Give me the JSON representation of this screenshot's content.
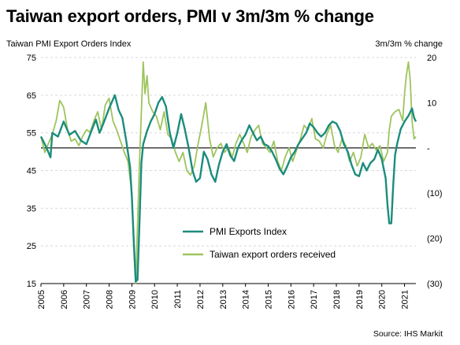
{
  "title": "Taiwan export orders, PMI v 3m/3m % change",
  "source": "Source: IHS Markit",
  "colors": {
    "pmi": "#1b8c7c",
    "orders": "#9ec45e",
    "grid": "#d9d9d9",
    "zero": "#000000"
  },
  "chart_data": {
    "type": "line",
    "title": "Taiwan export orders, PMI v 3m/3m % change",
    "left_axis": {
      "label": "Taiwan PMI Export Orders Index",
      "range": [
        15,
        75
      ],
      "ticks": [
        "75",
        "65",
        "55",
        "45",
        "35",
        "25",
        "15"
      ]
    },
    "right_axis": {
      "label": "3m/3m % change",
      "range": [
        -30,
        20
      ],
      "ticks": [
        "20",
        "10",
        "-",
        "(10)",
        "(20)",
        "(30)"
      ]
    },
    "x_ticks": [
      "2005",
      "2006",
      "2007",
      "2008",
      "2009",
      "2010",
      "2011",
      "2012",
      "2013",
      "2014",
      "2015",
      "2016",
      "2017",
      "2018",
      "2019",
      "2020",
      "2021"
    ],
    "x_range": [
      2005.0,
      2021.5
    ],
    "grid": true,
    "legend_position": "bottom-center",
    "series": [
      {
        "name": "PMI Exports Index",
        "axis": "left",
        "color": "#1b8c7c",
        "points": [
          [
            2005.0,
            54.0
          ],
          [
            2005.25,
            51.0
          ],
          [
            2005.42,
            48.5
          ],
          [
            2005.5,
            55.0
          ],
          [
            2005.75,
            54.0
          ],
          [
            2006.0,
            58.0
          ],
          [
            2006.25,
            54.5
          ],
          [
            2006.5,
            55.5
          ],
          [
            2006.75,
            53.0
          ],
          [
            2007.0,
            52.0
          ],
          [
            2007.25,
            56.0
          ],
          [
            2007.42,
            58.5
          ],
          [
            2007.58,
            55.0
          ],
          [
            2007.75,
            57.5
          ],
          [
            2008.0,
            61.5
          ],
          [
            2008.25,
            65.0
          ],
          [
            2008.42,
            61.0
          ],
          [
            2008.58,
            59.0
          ],
          [
            2008.75,
            53.0
          ],
          [
            2008.92,
            46.0
          ],
          [
            2009.0,
            38.0
          ],
          [
            2009.08,
            27.0
          ],
          [
            2009.17,
            15.5
          ],
          [
            2009.25,
            16.0
          ],
          [
            2009.33,
            30.0
          ],
          [
            2009.42,
            47.0
          ],
          [
            2009.5,
            52.0
          ],
          [
            2009.67,
            55.5
          ],
          [
            2009.83,
            58.0
          ],
          [
            2010.0,
            60.0
          ],
          [
            2010.17,
            63.0
          ],
          [
            2010.33,
            64.5
          ],
          [
            2010.5,
            62.0
          ],
          [
            2010.67,
            55.0
          ],
          [
            2010.83,
            51.0
          ],
          [
            2011.0,
            55.0
          ],
          [
            2011.17,
            60.0
          ],
          [
            2011.33,
            56.0
          ],
          [
            2011.5,
            51.0
          ],
          [
            2011.67,
            45.0
          ],
          [
            2011.83,
            42.0
          ],
          [
            2012.0,
            43.0
          ],
          [
            2012.17,
            50.0
          ],
          [
            2012.33,
            48.0
          ],
          [
            2012.5,
            44.0
          ],
          [
            2012.67,
            42.0
          ],
          [
            2012.83,
            46.5
          ],
          [
            2013.0,
            50.0
          ],
          [
            2013.17,
            52.0
          ],
          [
            2013.33,
            49.0
          ],
          [
            2013.5,
            47.5
          ],
          [
            2013.67,
            51.0
          ],
          [
            2013.83,
            53.0
          ],
          [
            2014.0,
            54.5
          ],
          [
            2014.17,
            57.0
          ],
          [
            2014.33,
            55.0
          ],
          [
            2014.5,
            53.0
          ],
          [
            2014.67,
            54.0
          ],
          [
            2014.83,
            52.0
          ],
          [
            2015.0,
            51.5
          ],
          [
            2015.17,
            50.0
          ],
          [
            2015.33,
            48.0
          ],
          [
            2015.5,
            45.5
          ],
          [
            2015.67,
            44.0
          ],
          [
            2015.83,
            46.0
          ],
          [
            2016.0,
            48.5
          ],
          [
            2016.17,
            50.0
          ],
          [
            2016.33,
            52.0
          ],
          [
            2016.5,
            53.5
          ],
          [
            2016.67,
            55.0
          ],
          [
            2016.83,
            57.5
          ],
          [
            2017.0,
            56.5
          ],
          [
            2017.17,
            55.0
          ],
          [
            2017.33,
            54.0
          ],
          [
            2017.5,
            55.0
          ],
          [
            2017.67,
            57.0
          ],
          [
            2017.83,
            58.0
          ],
          [
            2018.0,
            57.5
          ],
          [
            2018.17,
            55.5
          ],
          [
            2018.33,
            52.0
          ],
          [
            2018.5,
            50.0
          ],
          [
            2018.67,
            46.5
          ],
          [
            2018.83,
            44.0
          ],
          [
            2019.0,
            43.5
          ],
          [
            2019.17,
            47.0
          ],
          [
            2019.33,
            45.0
          ],
          [
            2019.5,
            47.0
          ],
          [
            2019.67,
            48.0
          ],
          [
            2019.83,
            50.5
          ],
          [
            2020.0,
            48.0
          ],
          [
            2020.17,
            43.0
          ],
          [
            2020.25,
            36.0
          ],
          [
            2020.33,
            31.0
          ],
          [
            2020.42,
            31.0
          ],
          [
            2020.5,
            41.0
          ],
          [
            2020.58,
            49.0
          ],
          [
            2020.67,
            52.0
          ],
          [
            2020.83,
            56.0
          ],
          [
            2021.0,
            58.0
          ],
          [
            2021.17,
            59.5
          ],
          [
            2021.33,
            61.5
          ],
          [
            2021.42,
            59.0
          ],
          [
            2021.5,
            58.0
          ]
        ]
      },
      {
        "name": "Taiwan export orders received",
        "axis": "right",
        "color": "#9ec45e",
        "points": [
          [
            2005.0,
            2.5
          ],
          [
            2005.17,
            -1.0
          ],
          [
            2005.33,
            1.0
          ],
          [
            2005.5,
            3.0
          ],
          [
            2005.67,
            6.0
          ],
          [
            2005.83,
            10.5
          ],
          [
            2006.0,
            9.0
          ],
          [
            2006.17,
            4.0
          ],
          [
            2006.33,
            1.5
          ],
          [
            2006.5,
            2.0
          ],
          [
            2006.67,
            0.5
          ],
          [
            2006.83,
            2.5
          ],
          [
            2007.0,
            4.0
          ],
          [
            2007.17,
            3.5
          ],
          [
            2007.33,
            6.0
          ],
          [
            2007.5,
            8.0
          ],
          [
            2007.67,
            4.0
          ],
          [
            2007.83,
            9.5
          ],
          [
            2008.0,
            11.0
          ],
          [
            2008.17,
            6.0
          ],
          [
            2008.33,
            4.0
          ],
          [
            2008.5,
            1.5
          ],
          [
            2008.67,
            -1.0
          ],
          [
            2008.83,
            -3.0
          ],
          [
            2009.0,
            -10.0
          ],
          [
            2009.08,
            -22.0
          ],
          [
            2009.17,
            -30.0
          ],
          [
            2009.25,
            -17.0
          ],
          [
            2009.33,
            -4.0
          ],
          [
            2009.42,
            8.0
          ],
          [
            2009.5,
            19.0
          ],
          [
            2009.58,
            12.0
          ],
          [
            2009.67,
            16.0
          ],
          [
            2009.75,
            10.0
          ],
          [
            2009.92,
            8.0
          ],
          [
            2010.08,
            7.0
          ],
          [
            2010.25,
            4.0
          ],
          [
            2010.42,
            8.0
          ],
          [
            2010.58,
            3.0
          ],
          [
            2010.75,
            2.0
          ],
          [
            2010.92,
            -1.0
          ],
          [
            2011.08,
            -3.0
          ],
          [
            2011.25,
            -1.0
          ],
          [
            2011.42,
            -5.0
          ],
          [
            2011.58,
            -6.0
          ],
          [
            2011.75,
            -4.0
          ],
          [
            2011.92,
            1.0
          ],
          [
            2012.08,
            5.0
          ],
          [
            2012.25,
            10.0
          ],
          [
            2012.42,
            2.0
          ],
          [
            2012.58,
            -2.0
          ],
          [
            2012.75,
            0.0
          ],
          [
            2012.92,
            1.0
          ],
          [
            2013.08,
            -1.0
          ],
          [
            2013.25,
            0.0
          ],
          [
            2013.42,
            -2.0
          ],
          [
            2013.58,
            1.0
          ],
          [
            2013.75,
            3.0
          ],
          [
            2013.92,
            1.0
          ],
          [
            2014.08,
            -1.0
          ],
          [
            2014.25,
            2.5
          ],
          [
            2014.42,
            4.0
          ],
          [
            2014.58,
            5.0
          ],
          [
            2014.75,
            1.0
          ],
          [
            2014.92,
            0.0
          ],
          [
            2015.08,
            -1.0
          ],
          [
            2015.25,
            1.5
          ],
          [
            2015.42,
            -3.0
          ],
          [
            2015.58,
            -5.0
          ],
          [
            2015.75,
            -2.0
          ],
          [
            2015.92,
            0.0
          ],
          [
            2016.08,
            -3.0
          ],
          [
            2016.25,
            -0.5
          ],
          [
            2016.42,
            2.0
          ],
          [
            2016.58,
            5.0
          ],
          [
            2016.75,
            4.0
          ],
          [
            2016.92,
            6.5
          ],
          [
            2017.08,
            2.0
          ],
          [
            2017.25,
            1.5
          ],
          [
            2017.42,
            0.0
          ],
          [
            2017.58,
            3.0
          ],
          [
            2017.75,
            5.0
          ],
          [
            2017.92,
            0.5
          ],
          [
            2018.08,
            -1.0
          ],
          [
            2018.25,
            2.0
          ],
          [
            2018.42,
            0.5
          ],
          [
            2018.58,
            -3.0
          ],
          [
            2018.75,
            -1.0
          ],
          [
            2018.92,
            -4.0
          ],
          [
            2019.08,
            -2.0
          ],
          [
            2019.25,
            3.0
          ],
          [
            2019.42,
            0.0
          ],
          [
            2019.58,
            1.0
          ],
          [
            2019.75,
            -0.5
          ],
          [
            2019.92,
            0.5
          ],
          [
            2020.08,
            -3.0
          ],
          [
            2020.25,
            -1.0
          ],
          [
            2020.33,
            4.0
          ],
          [
            2020.42,
            7.0
          ],
          [
            2020.58,
            8.0
          ],
          [
            2020.75,
            8.5
          ],
          [
            2020.92,
            6.0
          ],
          [
            2021.0,
            12.0
          ],
          [
            2021.08,
            16.0
          ],
          [
            2021.17,
            19.0
          ],
          [
            2021.25,
            15.0
          ],
          [
            2021.33,
            6.0
          ],
          [
            2021.42,
            2.0
          ],
          [
            2021.5,
            2.5
          ]
        ]
      }
    ]
  }
}
